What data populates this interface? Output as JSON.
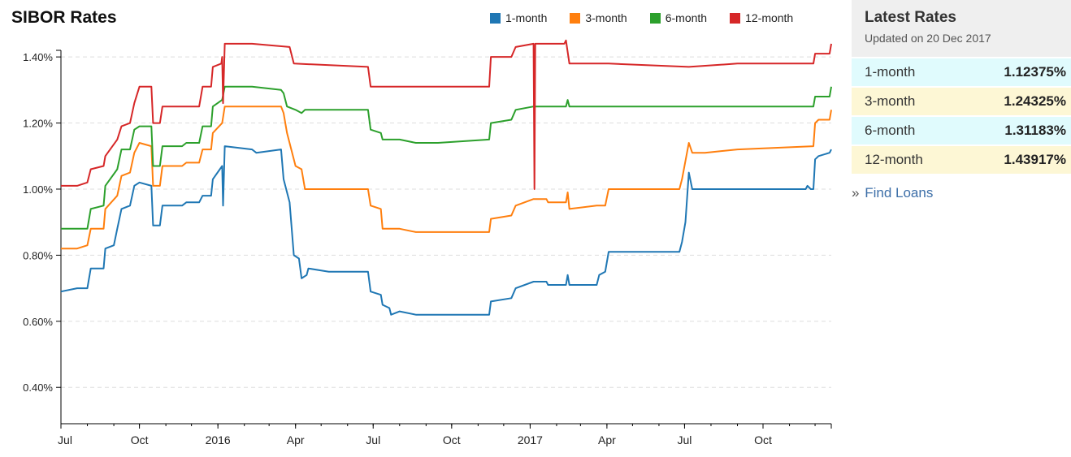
{
  "chart_title": "SIBOR Rates",
  "legend": [
    {
      "name": "1-month",
      "color": "#1f77b4"
    },
    {
      "name": "3-month",
      "color": "#ff7f0e"
    },
    {
      "name": "6-month",
      "color": "#2ca02c"
    },
    {
      "name": "12-month",
      "color": "#d62728"
    }
  ],
  "sidebar": {
    "title": "Latest Rates",
    "updated": "Updated on 20 Dec 2017",
    "rates": [
      {
        "label": "1-month",
        "value": "1.12375%"
      },
      {
        "label": "3-month",
        "value": "1.24325%"
      },
      {
        "label": "6-month",
        "value": "1.31183%"
      },
      {
        "label": "12-month",
        "value": "1.43917%"
      }
    ],
    "link_arrow": "»",
    "link_label": "Find Loans"
  },
  "chart_data": {
    "type": "line",
    "title": "SIBOR Rates",
    "xlabel": "",
    "ylabel": "",
    "x_range": [
      "2015-07-01",
      "2017-12-20"
    ],
    "ylim": [
      0.29,
      1.42
    ],
    "y_ticks": [
      0.4,
      0.6,
      0.8,
      1.0,
      1.2,
      1.4
    ],
    "y_tick_labels": [
      "0.40%",
      "0.60%",
      "0.80%",
      "1.00%",
      "1.20%",
      "1.40%"
    ],
    "x_ticks": [
      {
        "date": "2015-07-01",
        "label": "Jul"
      },
      {
        "date": "2015-10-01",
        "label": "Oct"
      },
      {
        "date": "2016-01-01",
        "label": "2016"
      },
      {
        "date": "2016-04-01",
        "label": "Apr"
      },
      {
        "date": "2016-07-01",
        "label": "Jul"
      },
      {
        "date": "2016-10-01",
        "label": "Oct"
      },
      {
        "date": "2017-01-01",
        "label": "2017"
      },
      {
        "date": "2017-04-01",
        "label": "Apr"
      },
      {
        "date": "2017-07-01",
        "label": "Jul"
      },
      {
        "date": "2017-10-01",
        "label": "Oct"
      }
    ],
    "grid": "horizontal-dashed",
    "legend_position": "top",
    "series": [
      {
        "name": "1-month",
        "color": "#1f77b4",
        "points": [
          [
            "2015-07-01",
            0.69
          ],
          [
            "2015-07-20",
            0.7
          ],
          [
            "2015-08-01",
            0.7
          ],
          [
            "2015-08-05",
            0.76
          ],
          [
            "2015-08-20",
            0.76
          ],
          [
            "2015-08-22",
            0.82
          ],
          [
            "2015-09-01",
            0.83
          ],
          [
            "2015-09-05",
            0.88
          ],
          [
            "2015-09-10",
            0.94
          ],
          [
            "2015-09-20",
            0.95
          ],
          [
            "2015-09-25",
            1.01
          ],
          [
            "2015-10-01",
            1.02
          ],
          [
            "2015-10-15",
            1.01
          ],
          [
            "2015-10-17",
            0.89
          ],
          [
            "2015-10-25",
            0.89
          ],
          [
            "2015-10-28",
            0.95
          ],
          [
            "2015-11-20",
            0.95
          ],
          [
            "2015-11-25",
            0.96
          ],
          [
            "2015-12-10",
            0.96
          ],
          [
            "2015-12-14",
            0.98
          ],
          [
            "2015-12-24",
            0.98
          ],
          [
            "2015-12-26",
            1.03
          ],
          [
            "2016-01-06",
            1.07
          ],
          [
            "2016-01-07",
            0.95
          ],
          [
            "2016-01-09",
            1.13
          ],
          [
            "2016-02-10",
            1.12
          ],
          [
            "2016-02-15",
            1.11
          ],
          [
            "2016-03-15",
            1.12
          ],
          [
            "2016-03-18",
            1.03
          ],
          [
            "2016-03-25",
            0.96
          ],
          [
            "2016-03-30",
            0.8
          ],
          [
            "2016-04-05",
            0.79
          ],
          [
            "2016-04-08",
            0.73
          ],
          [
            "2016-04-14",
            0.74
          ],
          [
            "2016-04-16",
            0.76
          ],
          [
            "2016-05-10",
            0.75
          ],
          [
            "2016-06-25",
            0.75
          ],
          [
            "2016-06-28",
            0.69
          ],
          [
            "2016-07-10",
            0.68
          ],
          [
            "2016-07-12",
            0.65
          ],
          [
            "2016-07-20",
            0.64
          ],
          [
            "2016-07-22",
            0.62
          ],
          [
            "2016-08-01",
            0.63
          ],
          [
            "2016-08-20",
            0.62
          ],
          [
            "2016-09-15",
            0.62
          ],
          [
            "2016-11-14",
            0.62
          ],
          [
            "2016-11-16",
            0.66
          ],
          [
            "2016-12-10",
            0.67
          ],
          [
            "2016-12-15",
            0.7
          ],
          [
            "2017-01-05",
            0.72
          ],
          [
            "2017-01-20",
            0.72
          ],
          [
            "2017-01-22",
            0.71
          ],
          [
            "2017-02-12",
            0.71
          ],
          [
            "2017-02-14",
            0.74
          ],
          [
            "2017-02-16",
            0.71
          ],
          [
            "2017-03-20",
            0.71
          ],
          [
            "2017-03-23",
            0.74
          ],
          [
            "2017-03-30",
            0.75
          ],
          [
            "2017-04-03",
            0.81
          ],
          [
            "2017-06-25",
            0.81
          ],
          [
            "2017-06-28",
            0.84
          ],
          [
            "2017-07-02",
            0.9
          ],
          [
            "2017-07-06",
            1.05
          ],
          [
            "2017-07-10",
            1.0
          ],
          [
            "2017-07-25",
            1.0
          ],
          [
            "2017-09-01",
            1.0
          ],
          [
            "2017-10-10",
            1.0
          ],
          [
            "2017-11-20",
            1.0
          ],
          [
            "2017-11-22",
            1.01
          ],
          [
            "2017-11-26",
            1.0
          ],
          [
            "2017-11-29",
            1.0
          ],
          [
            "2017-12-01",
            1.09
          ],
          [
            "2017-12-05",
            1.1
          ],
          [
            "2017-12-18",
            1.11
          ],
          [
            "2017-12-20",
            1.12
          ]
        ]
      },
      {
        "name": "3-month",
        "color": "#ff7f0e",
        "points": [
          [
            "2015-07-01",
            0.82
          ],
          [
            "2015-07-20",
            0.82
          ],
          [
            "2015-08-01",
            0.83
          ],
          [
            "2015-08-05",
            0.88
          ],
          [
            "2015-08-20",
            0.88
          ],
          [
            "2015-08-22",
            0.94
          ],
          [
            "2015-09-05",
            0.98
          ],
          [
            "2015-09-10",
            1.04
          ],
          [
            "2015-09-20",
            1.05
          ],
          [
            "2015-09-25",
            1.11
          ],
          [
            "2015-10-01",
            1.14
          ],
          [
            "2015-10-15",
            1.13
          ],
          [
            "2015-10-17",
            1.01
          ],
          [
            "2015-10-25",
            1.01
          ],
          [
            "2015-10-28",
            1.07
          ],
          [
            "2015-11-20",
            1.07
          ],
          [
            "2015-11-25",
            1.08
          ],
          [
            "2015-12-10",
            1.08
          ],
          [
            "2015-12-14",
            1.12
          ],
          [
            "2015-12-24",
            1.12
          ],
          [
            "2015-12-26",
            1.17
          ],
          [
            "2016-01-06",
            1.2
          ],
          [
            "2016-01-09",
            1.25
          ],
          [
            "2016-02-10",
            1.25
          ],
          [
            "2016-03-15",
            1.25
          ],
          [
            "2016-03-18",
            1.23
          ],
          [
            "2016-03-22",
            1.17
          ],
          [
            "2016-04-01",
            1.07
          ],
          [
            "2016-04-08",
            1.06
          ],
          [
            "2016-04-12",
            1.0
          ],
          [
            "2016-05-10",
            1.0
          ],
          [
            "2016-06-25",
            1.0
          ],
          [
            "2016-06-28",
            0.95
          ],
          [
            "2016-07-10",
            0.94
          ],
          [
            "2016-07-12",
            0.88
          ],
          [
            "2016-08-01",
            0.88
          ],
          [
            "2016-08-20",
            0.87
          ],
          [
            "2016-09-15",
            0.87
          ],
          [
            "2016-11-14",
            0.87
          ],
          [
            "2016-11-16",
            0.91
          ],
          [
            "2016-12-10",
            0.92
          ],
          [
            "2016-12-15",
            0.95
          ],
          [
            "2017-01-05",
            0.97
          ],
          [
            "2017-01-20",
            0.97
          ],
          [
            "2017-01-22",
            0.96
          ],
          [
            "2017-02-12",
            0.96
          ],
          [
            "2017-02-14",
            0.99
          ],
          [
            "2017-02-16",
            0.94
          ],
          [
            "2017-03-20",
            0.95
          ],
          [
            "2017-03-30",
            0.95
          ],
          [
            "2017-04-03",
            1.0
          ],
          [
            "2017-06-25",
            1.0
          ],
          [
            "2017-06-28",
            1.03
          ],
          [
            "2017-07-06",
            1.14
          ],
          [
            "2017-07-10",
            1.11
          ],
          [
            "2017-07-25",
            1.11
          ],
          [
            "2017-09-01",
            1.12
          ],
          [
            "2017-11-29",
            1.13
          ],
          [
            "2017-12-01",
            1.2
          ],
          [
            "2017-12-05",
            1.21
          ],
          [
            "2017-12-18",
            1.21
          ],
          [
            "2017-12-20",
            1.24
          ]
        ]
      },
      {
        "name": "6-month",
        "color": "#2ca02c",
        "points": [
          [
            "2015-07-01",
            0.88
          ],
          [
            "2015-07-20",
            0.88
          ],
          [
            "2015-08-01",
            0.88
          ],
          [
            "2015-08-05",
            0.94
          ],
          [
            "2015-08-20",
            0.95
          ],
          [
            "2015-08-22",
            1.01
          ],
          [
            "2015-09-05",
            1.06
          ],
          [
            "2015-09-10",
            1.12
          ],
          [
            "2015-09-20",
            1.12
          ],
          [
            "2015-09-25",
            1.18
          ],
          [
            "2015-10-01",
            1.19
          ],
          [
            "2015-10-15",
            1.19
          ],
          [
            "2015-10-17",
            1.07
          ],
          [
            "2015-10-25",
            1.07
          ],
          [
            "2015-10-28",
            1.13
          ],
          [
            "2015-11-20",
            1.13
          ],
          [
            "2015-11-25",
            1.14
          ],
          [
            "2015-12-10",
            1.14
          ],
          [
            "2015-12-14",
            1.19
          ],
          [
            "2015-12-24",
            1.19
          ],
          [
            "2015-12-26",
            1.25
          ],
          [
            "2016-01-06",
            1.27
          ],
          [
            "2016-01-09",
            1.31
          ],
          [
            "2016-02-10",
            1.31
          ],
          [
            "2016-03-15",
            1.3
          ],
          [
            "2016-03-18",
            1.29
          ],
          [
            "2016-03-22",
            1.25
          ],
          [
            "2016-04-01",
            1.24
          ],
          [
            "2016-04-08",
            1.23
          ],
          [
            "2016-04-12",
            1.24
          ],
          [
            "2016-05-10",
            1.24
          ],
          [
            "2016-06-25",
            1.24
          ],
          [
            "2016-06-28",
            1.18
          ],
          [
            "2016-07-10",
            1.17
          ],
          [
            "2016-07-12",
            1.15
          ],
          [
            "2016-08-01",
            1.15
          ],
          [
            "2016-08-20",
            1.14
          ],
          [
            "2016-09-15",
            1.14
          ],
          [
            "2016-11-14",
            1.15
          ],
          [
            "2016-11-16",
            1.2
          ],
          [
            "2016-12-10",
            1.21
          ],
          [
            "2016-12-15",
            1.24
          ],
          [
            "2017-01-05",
            1.25
          ],
          [
            "2017-02-12",
            1.25
          ],
          [
            "2017-02-14",
            1.27
          ],
          [
            "2017-02-16",
            1.25
          ],
          [
            "2017-04-03",
            1.25
          ],
          [
            "2017-07-06",
            1.25
          ],
          [
            "2017-09-01",
            1.25
          ],
          [
            "2017-11-29",
            1.25
          ],
          [
            "2017-12-01",
            1.28
          ],
          [
            "2017-12-18",
            1.28
          ],
          [
            "2017-12-20",
            1.31
          ]
        ]
      },
      {
        "name": "12-month",
        "color": "#d62728",
        "points": [
          [
            "2015-07-01",
            1.01
          ],
          [
            "2015-07-20",
            1.01
          ],
          [
            "2015-08-01",
            1.02
          ],
          [
            "2015-08-05",
            1.06
          ],
          [
            "2015-08-20",
            1.07
          ],
          [
            "2015-08-22",
            1.1
          ],
          [
            "2015-09-05",
            1.15
          ],
          [
            "2015-09-10",
            1.19
          ],
          [
            "2015-09-20",
            1.2
          ],
          [
            "2015-09-25",
            1.26
          ],
          [
            "2015-10-01",
            1.31
          ],
          [
            "2015-10-15",
            1.31
          ],
          [
            "2015-10-17",
            1.2
          ],
          [
            "2015-10-25",
            1.2
          ],
          [
            "2015-10-28",
            1.25
          ],
          [
            "2015-11-20",
            1.25
          ],
          [
            "2015-12-10",
            1.25
          ],
          [
            "2015-12-14",
            1.31
          ],
          [
            "2015-12-24",
            1.31
          ],
          [
            "2015-12-26",
            1.37
          ],
          [
            "2016-01-05",
            1.38
          ],
          [
            "2016-01-06",
            1.4
          ],
          [
            "2016-01-07",
            1.26
          ],
          [
            "2016-01-09",
            1.44
          ],
          [
            "2016-02-10",
            1.44
          ],
          [
            "2016-03-25",
            1.43
          ],
          [
            "2016-03-30",
            1.38
          ],
          [
            "2016-06-25",
            1.37
          ],
          [
            "2016-06-28",
            1.31
          ],
          [
            "2016-08-01",
            1.31
          ],
          [
            "2016-11-14",
            1.31
          ],
          [
            "2016-11-16",
            1.4
          ],
          [
            "2016-12-10",
            1.4
          ],
          [
            "2016-12-15",
            1.43
          ],
          [
            "2017-01-05",
            1.44
          ],
          [
            "2017-01-06",
            1.0
          ],
          [
            "2017-01-07",
            1.44
          ],
          [
            "2017-02-10",
            1.44
          ],
          [
            "2017-02-12",
            1.45
          ],
          [
            "2017-02-16",
            1.38
          ],
          [
            "2017-04-03",
            1.38
          ],
          [
            "2017-07-06",
            1.37
          ],
          [
            "2017-09-01",
            1.38
          ],
          [
            "2017-11-29",
            1.38
          ],
          [
            "2017-12-01",
            1.41
          ],
          [
            "2017-12-18",
            1.41
          ],
          [
            "2017-12-20",
            1.44
          ]
        ]
      }
    ]
  }
}
